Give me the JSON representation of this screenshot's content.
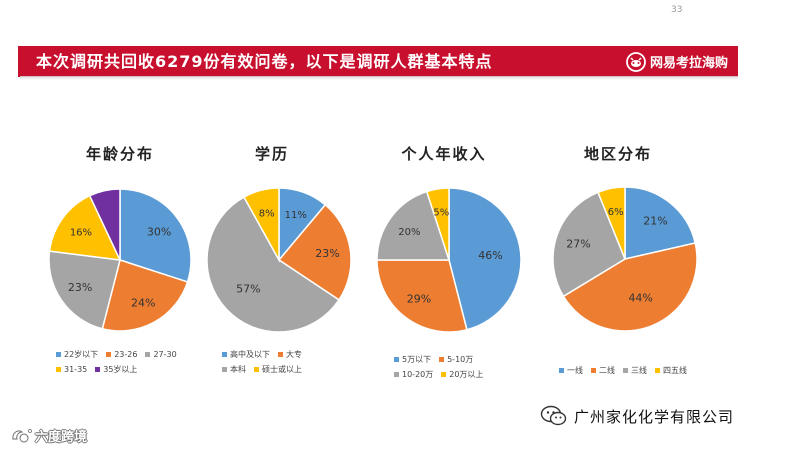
{
  "page_number": "33",
  "banner": {
    "title": "本次调研共回收6279份有效问卷，以下是调研人群基本特点",
    "brand": "网易考拉海购"
  },
  "colors": {
    "banner_red": "#c8102e",
    "blue": "#5b9bd5",
    "orange": "#ed7d31",
    "gray": "#a5a5a5",
    "yellow": "#ffc000",
    "purple": "#7030a0",
    "teal": "#2e9e8f"
  },
  "company": "广州家化化学有限公司",
  "watermark": "六度跨境",
  "icons": [
    "wechat-icon",
    "brand-logo-icon",
    "watermark-logo-icon"
  ],
  "chart_data": [
    {
      "type": "pie",
      "title": "年龄分布",
      "series": [
        {
          "name": "22岁以下",
          "value": 30,
          "label": "30%",
          "color": "#5b9bd5"
        },
        {
          "name": "23-26",
          "value": 24,
          "label": "24%",
          "color": "#ed7d31"
        },
        {
          "name": "27-30",
          "value": 23,
          "label": "23%",
          "color": "#a5a5a5"
        },
        {
          "name": "31-35",
          "value": 16,
          "label": "16%",
          "color": "#ffc000"
        },
        {
          "name": "35岁以上",
          "value": 7,
          "label": "",
          "color": "#7030a0"
        }
      ],
      "legend_rows": [
        [
          "22岁以下",
          "23-26",
          "27-30"
        ],
        [
          "31-35",
          "35岁以上"
        ]
      ]
    },
    {
      "type": "pie",
      "title": "学历",
      "series": [
        {
          "name": "高中及以下",
          "value": 11,
          "label": "11%",
          "color": "#5b9bd5"
        },
        {
          "name": "大专",
          "value": 23,
          "label": "23%",
          "color": "#ed7d31"
        },
        {
          "name": "本科",
          "value": 57,
          "label": "57%",
          "color": "#a5a5a5"
        },
        {
          "name": "硕士或以上",
          "value": 8,
          "label": "8%",
          "color": "#ffc000"
        }
      ],
      "legend_rows": [
        [
          "高中及以下",
          "大专"
        ],
        [
          "本科",
          "硕士或以上"
        ]
      ]
    },
    {
      "type": "pie",
      "title": "个人年收入",
      "series": [
        {
          "name": "5万以下",
          "value": 46,
          "label": "46%",
          "color": "#5b9bd5"
        },
        {
          "name": "5-10万",
          "value": 29,
          "label": "29%",
          "color": "#ed7d31"
        },
        {
          "name": "10-20万",
          "value": 20,
          "label": "20%",
          "color": "#a5a5a5"
        },
        {
          "name": "20万以上",
          "value": 5,
          "label": "5%",
          "color": "#ffc000"
        }
      ],
      "legend_rows": [
        [
          "5万以下",
          "5-10万"
        ],
        [
          "10-20万",
          "20万以上"
        ]
      ]
    },
    {
      "type": "pie",
      "title": "地区分布",
      "series": [
        {
          "name": "一线",
          "value": 21,
          "label": "21%",
          "color": "#5b9bd5"
        },
        {
          "name": "二线",
          "value": 44,
          "label": "44%",
          "color": "#ed7d31"
        },
        {
          "name": "三线",
          "value": 27,
          "label": "27%",
          "color": "#a5a5a5"
        },
        {
          "name": "四五线",
          "value": 6,
          "label": "6%",
          "color": "#ffc000"
        }
      ],
      "legend_rows": [
        [
          "一线",
          "二线",
          "三线",
          "四五线"
        ]
      ]
    }
  ]
}
